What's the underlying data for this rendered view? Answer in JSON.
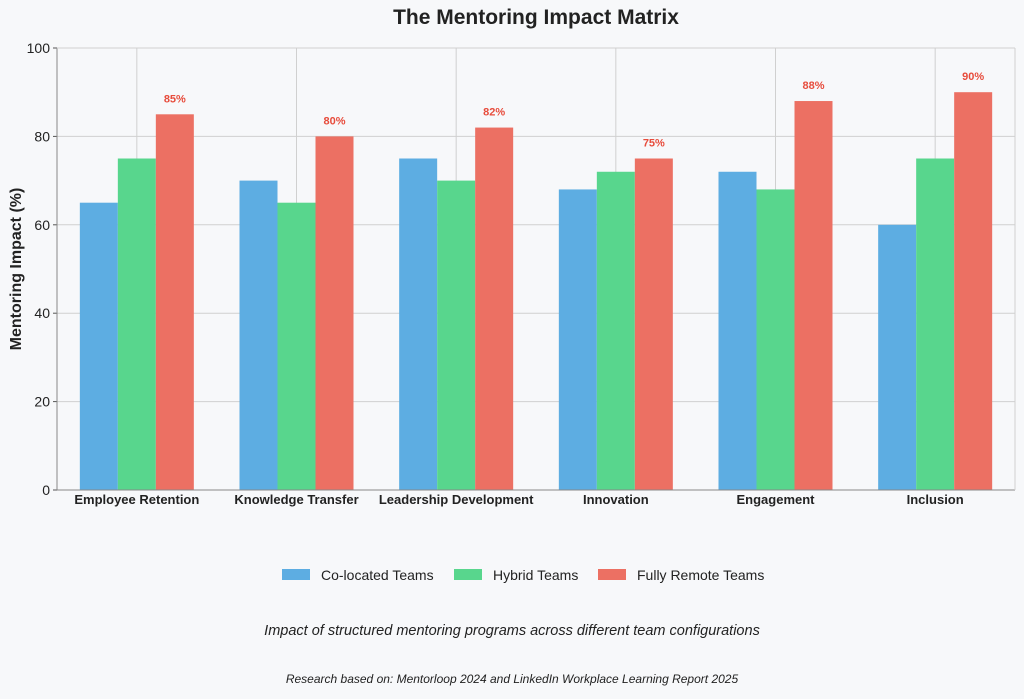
{
  "chart_data": {
    "type": "bar",
    "title": "The Mentoring Impact Matrix",
    "ylabel": "Mentoring Impact (%)",
    "xlabel": "",
    "ylim": [
      0,
      100
    ],
    "yticks": [
      0,
      20,
      40,
      60,
      80,
      100
    ],
    "grid": true,
    "legend_position": "bottom",
    "categories": [
      "Employee Retention",
      "Knowledge Transfer",
      "Leadership Development",
      "Innovation",
      "Engagement",
      "Inclusion"
    ],
    "series": [
      {
        "name": "Co-located Teams",
        "color": "#5dade2",
        "values": [
          65,
          70,
          75,
          68,
          72,
          60
        ],
        "show_labels": false
      },
      {
        "name": "Hybrid Teams",
        "color": "#58d68d",
        "values": [
          75,
          65,
          70,
          72,
          68,
          75
        ],
        "show_labels": false
      },
      {
        "name": "Fully Remote Teams",
        "color": "#ec7063",
        "values": [
          85,
          80,
          82,
          75,
          88,
          90
        ],
        "show_labels": true,
        "label_color": "#e74c3c",
        "label_suffix": "%"
      }
    ],
    "subtitle": "Impact of structured mentoring programs across different team configurations",
    "source": "Research based on: Mentorloop 2024 and LinkedIn Workplace Learning Report 2025"
  }
}
